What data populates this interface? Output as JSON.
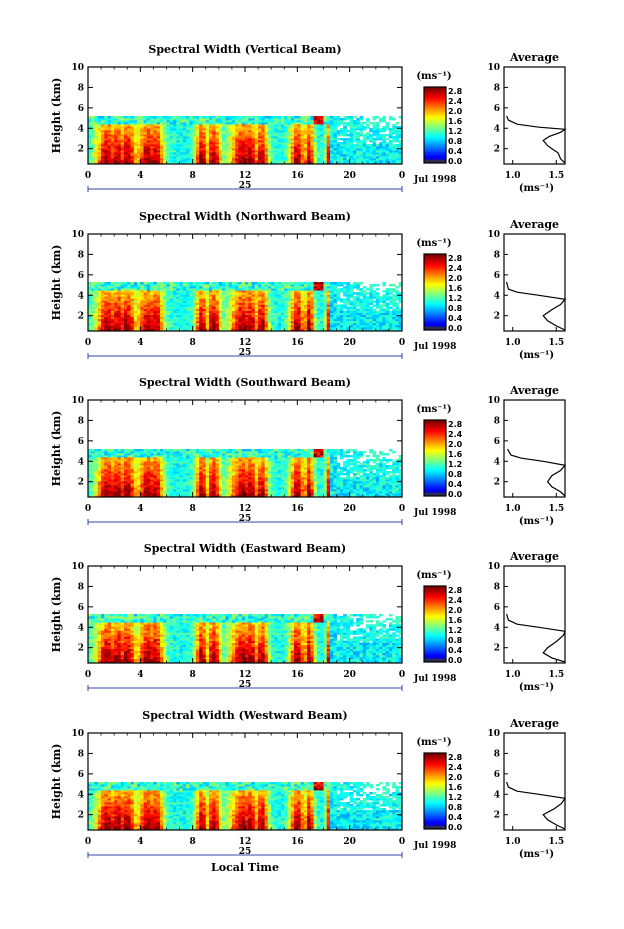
{
  "chart_data": [
    {
      "type": "heatmap",
      "title": "Spectral Width (Vertical Beam)",
      "ylabel": "Height (km)",
      "xlim": [
        0,
        24
      ],
      "ylim": [
        0.5,
        10
      ],
      "xticks": [
        "0",
        "4",
        "8",
        "12",
        "16",
        "20",
        "0"
      ],
      "yticks": [
        "2",
        "4",
        "6",
        "8",
        "10"
      ],
      "date_label": "25",
      "month_label": "Jul 1998",
      "colorbar": {
        "unit": "(ms⁻¹)",
        "ticks": [
          "2.8",
          "2.4",
          "2.0",
          "1.6",
          "1.2",
          "0.8",
          "0.4",
          "0.0"
        ]
      },
      "data_top_km": 5.2,
      "average": {
        "title": "Average",
        "xlabel": "(ms⁻¹)",
        "xticks": [
          "1.0",
          "1.5"
        ],
        "xlim": [
          0.9,
          1.6
        ],
        "yticks": [
          "2",
          "4",
          "6",
          "8",
          "10"
        ],
        "profile": [
          [
            1.62,
            0.6
          ],
          [
            1.55,
            1.0
          ],
          [
            1.52,
            1.6
          ],
          [
            1.45,
            2.0
          ],
          [
            1.4,
            2.3
          ],
          [
            1.35,
            2.8
          ],
          [
            1.42,
            3.2
          ],
          [
            1.55,
            3.6
          ],
          [
            1.6,
            3.9
          ],
          [
            1.3,
            4.1
          ],
          [
            1.05,
            4.4
          ],
          [
            0.95,
            4.8
          ],
          [
            0.93,
            5.2
          ]
        ]
      }
    },
    {
      "type": "heatmap",
      "title": "Spectral Width (Northward Beam)",
      "ylabel": "Height (km)",
      "xlim": [
        0,
        24
      ],
      "ylim": [
        0.5,
        10
      ],
      "xticks": [
        "0",
        "4",
        "8",
        "12",
        "16",
        "20",
        "0"
      ],
      "yticks": [
        "2",
        "4",
        "6",
        "8",
        "10"
      ],
      "date_label": "25",
      "month_label": "Jul 1998",
      "colorbar": {
        "unit": "(ms⁻¹)",
        "ticks": [
          "2.8",
          "2.4",
          "2.0",
          "1.6",
          "1.2",
          "0.8",
          "0.4",
          "0.0"
        ]
      },
      "data_top_km": 5.3,
      "average": {
        "title": "Average",
        "xlabel": "(ms⁻¹)",
        "xticks": [
          "1.0",
          "1.5"
        ],
        "xlim": [
          0.9,
          1.6
        ],
        "yticks": [
          "2",
          "4",
          "6",
          "8",
          "10"
        ],
        "profile": [
          [
            1.62,
            0.6
          ],
          [
            1.5,
            1.0
          ],
          [
            1.4,
            1.5
          ],
          [
            1.35,
            2.0
          ],
          [
            1.45,
            2.6
          ],
          [
            1.55,
            3.1
          ],
          [
            1.6,
            3.6
          ],
          [
            1.3,
            4.0
          ],
          [
            1.05,
            4.3
          ],
          [
            0.95,
            4.6
          ],
          [
            0.93,
            5.3
          ]
        ]
      }
    },
    {
      "type": "heatmap",
      "title": "Spectral Width (Southward Beam)",
      "ylabel": "Height (km)",
      "xlim": [
        0,
        24
      ],
      "ylim": [
        0.5,
        10
      ],
      "xticks": [
        "0",
        "4",
        "8",
        "12",
        "16",
        "20",
        "0"
      ],
      "yticks": [
        "2",
        "4",
        "6",
        "8",
        "10"
      ],
      "date_label": "25",
      "month_label": "Jul 1998",
      "colorbar": {
        "unit": "(ms⁻¹)",
        "ticks": [
          "2.8",
          "2.4",
          "2.0",
          "1.6",
          "1.2",
          "0.8",
          "0.4",
          "0.0"
        ]
      },
      "data_top_km": 5.2,
      "average": {
        "title": "Average",
        "xlabel": "(ms⁻¹)",
        "xticks": [
          "1.0",
          "1.5"
        ],
        "xlim": [
          0.9,
          1.6
        ],
        "yticks": [
          "2",
          "4",
          "6",
          "8",
          "10"
        ],
        "profile": [
          [
            1.62,
            0.6
          ],
          [
            1.55,
            1.0
          ],
          [
            1.45,
            1.5
          ],
          [
            1.4,
            2.0
          ],
          [
            1.45,
            2.6
          ],
          [
            1.55,
            3.1
          ],
          [
            1.6,
            3.6
          ],
          [
            1.35,
            4.0
          ],
          [
            1.1,
            4.3
          ],
          [
            0.98,
            4.6
          ],
          [
            0.94,
            5.2
          ]
        ]
      }
    },
    {
      "type": "heatmap",
      "title": "Spectral Width (Eastward Beam)",
      "ylabel": "Height (km)",
      "xlim": [
        0,
        24
      ],
      "ylim": [
        0.5,
        10
      ],
      "xticks": [
        "0",
        "4",
        "8",
        "12",
        "16",
        "20",
        "0"
      ],
      "yticks": [
        "2",
        "4",
        "6",
        "8",
        "10"
      ],
      "date_label": "25",
      "month_label": "Jul 1998",
      "colorbar": {
        "unit": "(ms⁻¹)",
        "ticks": [
          "2.8",
          "2.4",
          "2.0",
          "1.6",
          "1.2",
          "0.8",
          "0.4",
          "0.0"
        ]
      },
      "data_top_km": 5.3,
      "average": {
        "title": "Average",
        "xlabel": "(ms⁻¹)",
        "xticks": [
          "1.0",
          "1.5"
        ],
        "xlim": [
          0.9,
          1.6
        ],
        "yticks": [
          "2",
          "4",
          "6",
          "8",
          "10"
        ],
        "profile": [
          [
            1.62,
            0.6
          ],
          [
            1.45,
            1.0
          ],
          [
            1.35,
            1.5
          ],
          [
            1.4,
            2.0
          ],
          [
            1.5,
            2.6
          ],
          [
            1.58,
            3.2
          ],
          [
            1.6,
            3.6
          ],
          [
            1.3,
            4.0
          ],
          [
            1.05,
            4.3
          ],
          [
            0.95,
            4.7
          ],
          [
            0.93,
            5.3
          ]
        ]
      }
    },
    {
      "type": "heatmap",
      "title": "Spectral Width (Westward Beam)",
      "ylabel": "Height (km)",
      "xlabel": "Local Time",
      "xlim": [
        0,
        24
      ],
      "ylim": [
        0.5,
        10
      ],
      "xticks": [
        "0",
        "4",
        "8",
        "12",
        "16",
        "20",
        "0"
      ],
      "yticks": [
        "2",
        "4",
        "6",
        "8",
        "10"
      ],
      "date_label": "25",
      "month_label": "Jul 1998",
      "colorbar": {
        "unit": "(ms⁻¹)",
        "ticks": [
          "2.8",
          "2.4",
          "2.0",
          "1.6",
          "1.2",
          "0.8",
          "0.4",
          "0.0"
        ]
      },
      "data_top_km": 5.2,
      "average": {
        "title": "Average",
        "xlabel": "(ms⁻¹)",
        "xticks": [
          "1.0",
          "1.5"
        ],
        "xlim": [
          0.9,
          1.6
        ],
        "yticks": [
          "2",
          "4",
          "6",
          "8",
          "10"
        ],
        "profile": [
          [
            1.62,
            0.6
          ],
          [
            1.5,
            1.0
          ],
          [
            1.4,
            1.5
          ],
          [
            1.35,
            2.0
          ],
          [
            1.48,
            2.6
          ],
          [
            1.56,
            3.1
          ],
          [
            1.6,
            3.6
          ],
          [
            1.3,
            4.0
          ],
          [
            1.05,
            4.3
          ],
          [
            0.95,
            4.7
          ],
          [
            0.93,
            5.2
          ]
        ]
      }
    }
  ]
}
